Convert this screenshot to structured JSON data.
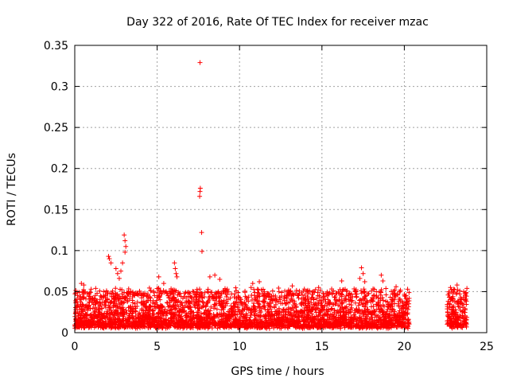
{
  "chart_data": {
    "type": "scatter",
    "title": "Day 322 of 2016, Rate Of TEC Index for receiver mzac",
    "xlabel": "GPS time / hours",
    "ylabel": "ROTI / TECUs",
    "xlim": [
      0,
      25
    ],
    "ylim": [
      0,
      0.35
    ],
    "xticks": [
      0,
      5,
      10,
      15,
      20,
      25
    ],
    "yticks": [
      0,
      0.05,
      0.1,
      0.15,
      0.2,
      0.25,
      0.3,
      0.35
    ],
    "x_tick_labels": [
      "0",
      "5",
      "10",
      "15",
      "20",
      "25"
    ],
    "y_tick_labels": [
      "0",
      "0.05",
      "0.1",
      "0.15",
      "0.2",
      "0.25",
      "0.3",
      "0.35"
    ],
    "grid": true,
    "marker": "+",
    "color": "#ff0000",
    "series": [
      {
        "name": "ROTI",
        "points": [
          [
            7.6,
            0.329
          ],
          [
            7.62,
            0.176
          ],
          [
            7.6,
            0.172
          ],
          [
            7.58,
            0.166
          ],
          [
            7.7,
            0.122
          ],
          [
            7.72,
            0.099
          ],
          [
            3.0,
            0.119
          ],
          [
            3.05,
            0.112
          ],
          [
            3.1,
            0.105
          ],
          [
            3.05,
            0.098
          ],
          [
            2.05,
            0.093
          ],
          [
            2.1,
            0.09
          ],
          [
            2.2,
            0.085
          ],
          [
            2.5,
            0.078
          ],
          [
            2.6,
            0.072
          ],
          [
            2.7,
            0.066
          ],
          [
            2.8,
            0.075
          ],
          [
            2.9,
            0.085
          ],
          [
            6.05,
            0.085
          ],
          [
            6.1,
            0.078
          ],
          [
            6.15,
            0.072
          ],
          [
            6.2,
            0.068
          ],
          [
            17.4,
            0.079
          ],
          [
            17.5,
            0.072
          ],
          [
            17.3,
            0.066
          ],
          [
            17.6,
            0.062
          ],
          [
            18.6,
            0.07
          ],
          [
            18.7,
            0.063
          ],
          [
            0.4,
            0.06
          ],
          [
            0.55,
            0.058
          ],
          [
            10.8,
            0.06
          ],
          [
            11.2,
            0.062
          ],
          [
            13.2,
            0.057
          ],
          [
            14.8,
            0.055
          ],
          [
            16.2,
            0.063
          ],
          [
            19.5,
            0.056
          ],
          [
            20.2,
            0.053
          ],
          [
            22.8,
            0.055
          ],
          [
            23.2,
            0.058
          ],
          [
            23.6,
            0.05
          ],
          [
            8.2,
            0.068
          ],
          [
            8.5,
            0.07
          ],
          [
            8.8,
            0.065
          ],
          [
            5.1,
            0.068
          ],
          [
            5.4,
            0.06
          ]
        ]
      }
    ],
    "bulk": {
      "segments": [
        [
          0,
          20.3
        ],
        [
          22.6,
          23.8
        ]
      ],
      "typical_max": 0.045,
      "baseline": 0.005
    }
  }
}
